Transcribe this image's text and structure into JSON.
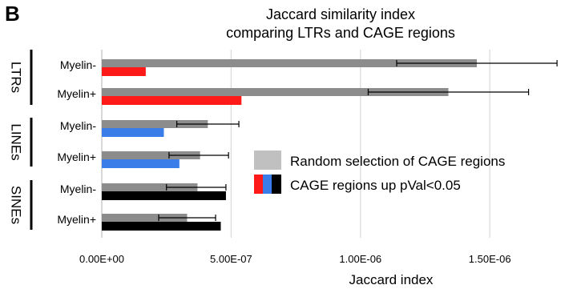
{
  "panel_label": "B",
  "colors": {
    "random": "#8c8c8c",
    "legend_random": "#c0c0c0",
    "ltr": "#ff1a1a",
    "line": "#3a7ce8",
    "sine": "#000000",
    "grid": "#d9d9d9"
  },
  "legend": {
    "random_label": "Random selection of CAGE regions",
    "up_label": "CAGE regions up pVal<0.05"
  },
  "chart_data": {
    "type": "bar",
    "orientation": "horizontal",
    "title": "Jaccard similarity index",
    "subtitle": "comparing LTRs and CAGE regions",
    "xlabel": "Jaccard index",
    "ylabel": "",
    "xlim": [
      0,
      1.8e-06
    ],
    "xticks": [
      0,
      5e-07,
      1e-06,
      1.5e-06
    ],
    "xtick_labels": [
      "0.00E+00",
      "5.00E-07",
      "1.00E-06",
      "1.50E-06"
    ],
    "grid": true,
    "legend_position": "right",
    "groups": [
      {
        "label": "LTRs",
        "categories": [
          "Myelin-",
          "Myelin+"
        ],
        "up_color_key": "ltr"
      },
      {
        "label": "LINEs",
        "categories": [
          "Myelin-",
          "Myelin+"
        ],
        "up_color_key": "line"
      },
      {
        "label": "SINEs",
        "categories": [
          "Myelin-",
          "Myelin+"
        ],
        "up_color_key": "sine"
      }
    ],
    "categories": [
      "LTRs Myelin-",
      "LTRs Myelin+",
      "LINEs Myelin-",
      "LINEs Myelin+",
      "SINEs Myelin-",
      "SINEs Myelin+"
    ],
    "series": [
      {
        "name": "Random selection of CAGE regions",
        "values": [
          1.45e-06,
          1.34e-06,
          4.1e-07,
          3.8e-07,
          3.7e-07,
          3.3e-07
        ],
        "error_low": [
          1.14e-06,
          1.03e-06,
          2.9e-07,
          2.6e-07,
          2.5e-07,
          2.2e-07
        ],
        "error_high": [
          1.76e-06,
          1.65e-06,
          5.3e-07,
          4.9e-07,
          4.8e-07,
          4.4e-07
        ]
      },
      {
        "name": "CAGE regions up pVal<0.05",
        "values": [
          1.7e-07,
          5.4e-07,
          2.4e-07,
          3e-07,
          4.8e-07,
          4.6e-07
        ]
      }
    ]
  }
}
